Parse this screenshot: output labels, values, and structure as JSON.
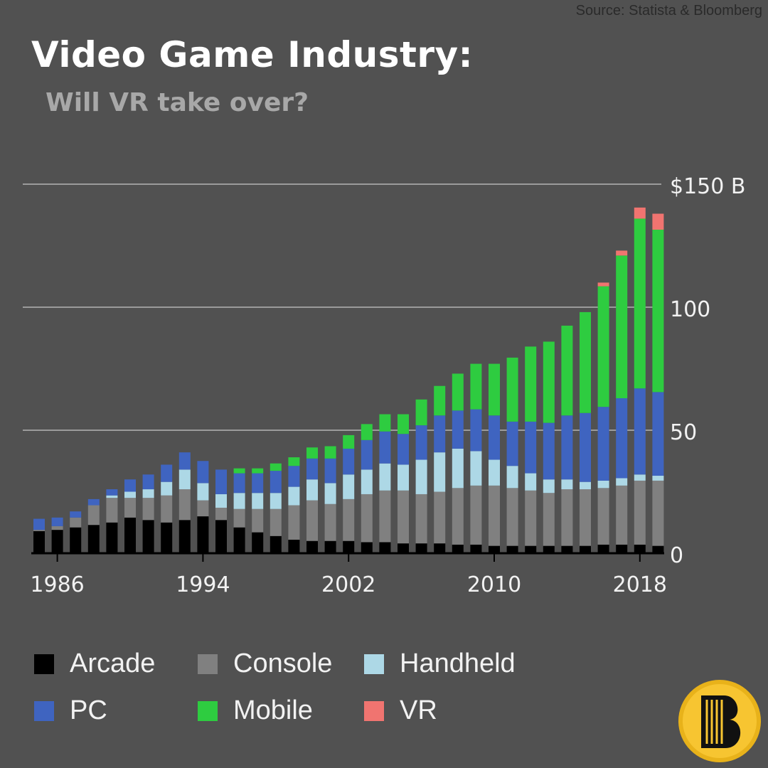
{
  "source": "Source: Statista & Bloomberg",
  "title": "Video Game Industry:",
  "subtitle": "Will VR take over?",
  "colors": {
    "background": "#515151",
    "grid": "#c8c8c8",
    "Arcade": "#000000",
    "Console": "#808080",
    "Handheld": "#add8e6",
    "PC": "#3f64c0",
    "Mobile": "#2ecc40",
    "VR": "#f07470"
  },
  "legend": [
    {
      "name": "Arcade",
      "color": "#000000"
    },
    {
      "name": "Console",
      "color": "#808080"
    },
    {
      "name": "Handheld",
      "color": "#add8e6"
    },
    {
      "name": "PC",
      "color": "#3f64c0"
    },
    {
      "name": "Mobile",
      "color": "#2ecc40"
    },
    {
      "name": "VR",
      "color": "#f07470"
    }
  ],
  "chart_data": {
    "type": "bar",
    "stacked": true,
    "x": [
      1985,
      1986,
      1987,
      1988,
      1989,
      1990,
      1991,
      1992,
      1993,
      1994,
      1995,
      1996,
      1997,
      1998,
      1999,
      2000,
      2001,
      2002,
      2003,
      2004,
      2005,
      2006,
      2007,
      2008,
      2009,
      2010,
      2011,
      2012,
      2013,
      2014,
      2015,
      2016,
      2017,
      2018,
      2019
    ],
    "x_ticks": [
      1986,
      1994,
      2002,
      2010,
      2018
    ],
    "x_tick_labels": [
      "1986",
      "1994",
      "2002",
      "2010",
      "2018"
    ],
    "y_ticks": [
      0,
      50,
      100,
      150
    ],
    "y_tick_labels": [
      "0",
      "50",
      "100",
      "$150 B"
    ],
    "ylim": [
      0,
      150
    ],
    "grid": true,
    "series": [
      {
        "name": "Arcade",
        "values": [
          9,
          9.5,
          10.5,
          11.5,
          12.5,
          14.5,
          13.5,
          12.5,
          13.5,
          15,
          13.5,
          10.5,
          8.5,
          7,
          5.5,
          5,
          5,
          5,
          4.5,
          4.5,
          4,
          4,
          4,
          3.5,
          3.5,
          3,
          3,
          3,
          3,
          3,
          3,
          3.5,
          3.5,
          3.5,
          3
        ]
      },
      {
        "name": "Console",
        "values": [
          0.5,
          1.5,
          4,
          8,
          10,
          8,
          9,
          11,
          12.5,
          6.5,
          5,
          7.5,
          9.5,
          11,
          14,
          16.5,
          15,
          17,
          19.5,
          21,
          21.5,
          20,
          21,
          23,
          24,
          24.5,
          23.5,
          22.5,
          21.5,
          23,
          23,
          23,
          24,
          26,
          26.5
        ]
      },
      {
        "name": "Handheld",
        "values": [
          0,
          0,
          0,
          0,
          1,
          2.5,
          3.5,
          5.5,
          8,
          7,
          5.5,
          6.5,
          6.5,
          6.5,
          7.5,
          8.5,
          8.5,
          10,
          10,
          11,
          10.5,
          14,
          16,
          16,
          14,
          10.5,
          9,
          7,
          5.5,
          4,
          3,
          3,
          3,
          2.5,
          2
        ]
      },
      {
        "name": "PC",
        "values": [
          4.5,
          3.5,
          2.5,
          2.5,
          2.5,
          5,
          6,
          7,
          7,
          9,
          10,
          8,
          8,
          9,
          8.5,
          8.5,
          10,
          10.5,
          12,
          13,
          12.5,
          14,
          15,
          15.5,
          17,
          18,
          18,
          21,
          23,
          26,
          28,
          30,
          32.5,
          35,
          34
        ]
      },
      {
        "name": "Mobile",
        "values": [
          0,
          0,
          0,
          0,
          0,
          0,
          0,
          0,
          0,
          0,
          0,
          2,
          2,
          3,
          3.5,
          4.5,
          5,
          5.5,
          6.5,
          7,
          8,
          10.5,
          12,
          15,
          18.5,
          21,
          26,
          30.5,
          33,
          36.5,
          41,
          49,
          58,
          69,
          66
        ]
      },
      {
        "name": "VR",
        "values": [
          0,
          0,
          0,
          0,
          0,
          0,
          0,
          0,
          0,
          0,
          0,
          0,
          0,
          0,
          0,
          0,
          0,
          0,
          0,
          0,
          0,
          0,
          0,
          0,
          0,
          0,
          0,
          0,
          0,
          0,
          0,
          1.5,
          2,
          4.5,
          6.5
        ]
      }
    ]
  }
}
